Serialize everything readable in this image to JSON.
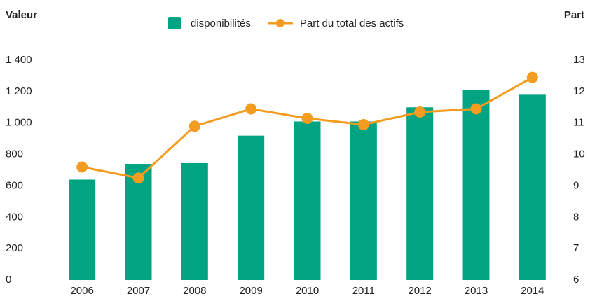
{
  "chart_data": {
    "type": "bar-line",
    "y_label": "Valeur",
    "y2_label": "Part",
    "categories": [
      "2006",
      "2007",
      "2008",
      "2009",
      "2010",
      "2011",
      "2012",
      "2013",
      "2014"
    ],
    "series": [
      {
        "name": "disponibilités",
        "color": "#00a482",
        "type": "bar",
        "values": [
          640,
          740,
          745,
          920,
          1010,
          1010,
          1100,
          1210,
          1180
        ]
      },
      {
        "name": "Part du total des actifs",
        "color": "#f39c1f",
        "type": "line",
        "axis": "y2",
        "values": [
          9.6,
          9.25,
          10.9,
          11.45,
          11.15,
          10.95,
          11.35,
          11.45,
          12.45
        ]
      }
    ],
    "ylim": [
      0,
      1400
    ],
    "yticks": [
      0,
      200,
      400,
      600,
      800,
      {
        "value": 1000,
        "label": "1 000"
      },
      {
        "value": 1200,
        "label": "1 200"
      },
      {
        "value": 1400,
        "label": "1 400"
      }
    ],
    "y2lim": [
      6,
      13
    ],
    "y2ticks": [
      6,
      7,
      8,
      9,
      10,
      11,
      12,
      13
    ],
    "legend": "top"
  }
}
